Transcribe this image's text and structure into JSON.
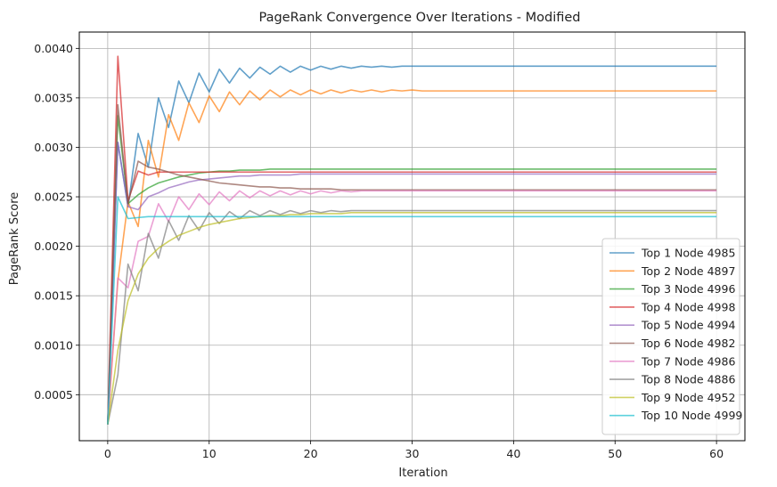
{
  "chart_data": {
    "type": "line",
    "title": "PageRank Convergence Over Iterations - Modified",
    "xlabel": "Iteration",
    "ylabel": "PageRank Score",
    "xlim": [
      -2.8,
      62.8
    ],
    "ylim": [
      3.5e-05,
      0.004165
    ],
    "xticks": [
      0,
      10,
      20,
      30,
      40,
      50,
      60
    ],
    "yticks": [
      0.0005,
      0.001,
      0.0015,
      0.002,
      0.0025,
      0.003,
      0.0035,
      0.004
    ],
    "ytick_labels": [
      "0.0005",
      "0.0010",
      "0.0015",
      "0.0020",
      "0.0025",
      "0.0030",
      "0.0035",
      "0.0040"
    ],
    "grid": true,
    "legend_position": "lower-right",
    "series": [
      {
        "name": "Top 1 Node 4985",
        "color": "#1f77b4",
        "values": [
          0.0002,
          0.00305,
          0.0024,
          0.00314,
          0.0028,
          0.0035,
          0.0032,
          0.00367,
          0.00345,
          0.00375,
          0.00356,
          0.00379,
          0.00365,
          0.0038,
          0.0037,
          0.00381,
          0.00374,
          0.00382,
          0.00376,
          0.00382,
          0.00378,
          0.00382,
          0.00379,
          0.00382,
          0.0038,
          0.00382,
          0.00381,
          0.00382,
          0.00381,
          0.00382
        ]
      },
      {
        "name": "Top 2 Node 4897",
        "color": "#ff7f0e",
        "values": [
          0.0002,
          0.00165,
          0.00245,
          0.0022,
          0.00307,
          0.0027,
          0.00333,
          0.00307,
          0.00345,
          0.00325,
          0.00352,
          0.00336,
          0.00356,
          0.00343,
          0.00357,
          0.00348,
          0.00358,
          0.00351,
          0.00358,
          0.00353,
          0.00358,
          0.00354,
          0.00358,
          0.00355,
          0.00358,
          0.00356,
          0.00358,
          0.00356,
          0.00358,
          0.00357,
          0.00358,
          0.00357
        ]
      },
      {
        "name": "Top 3 Node 4996",
        "color": "#2ca02c",
        "values": [
          0.0002,
          0.00332,
          0.00243,
          0.00252,
          0.00259,
          0.00264,
          0.00267,
          0.0027,
          0.00272,
          0.00274,
          0.00275,
          0.00276,
          0.00276,
          0.00277,
          0.00277,
          0.00277,
          0.00278,
          0.00278
        ]
      },
      {
        "name": "Top 4 Node 4998",
        "color": "#d62728",
        "values": [
          0.0002,
          0.00392,
          0.00246,
          0.00276,
          0.00272,
          0.00275,
          0.00275
        ]
      },
      {
        "name": "Top 5 Node 4994",
        "color": "#9467bd",
        "values": [
          0.0002,
          0.00305,
          0.0024,
          0.00237,
          0.0025,
          0.00254,
          0.00259,
          0.00262,
          0.00265,
          0.00267,
          0.00268,
          0.00269,
          0.0027,
          0.00271,
          0.00271,
          0.00272,
          0.00272,
          0.00272,
          0.00272,
          0.00273,
          0.00273
        ]
      },
      {
        "name": "Top 6 Node 4982",
        "color": "#8c564b",
        "values": [
          0.0002,
          0.00343,
          0.00243,
          0.00286,
          0.0028,
          0.00278,
          0.00275,
          0.00272,
          0.0027,
          0.00268,
          0.00266,
          0.00264,
          0.00263,
          0.00262,
          0.00261,
          0.0026,
          0.0026,
          0.00259,
          0.00259,
          0.00258,
          0.00258,
          0.00258,
          0.00258,
          0.00257,
          0.00257
        ]
      },
      {
        "name": "Top 7 Node 4986",
        "color": "#e377c2",
        "values": [
          0.0002,
          0.00168,
          0.00158,
          0.00205,
          0.0021,
          0.00243,
          0.00225,
          0.0025,
          0.00237,
          0.00253,
          0.00242,
          0.00255,
          0.00246,
          0.00256,
          0.00249,
          0.00256,
          0.00251,
          0.00256,
          0.00252,
          0.00256,
          0.00253,
          0.00256,
          0.00254,
          0.00256,
          0.00255,
          0.00256
        ]
      },
      {
        "name": "Top 8 Node 4886",
        "color": "#7f7f7f",
        "values": [
          0.0002,
          0.0007,
          0.00182,
          0.00155,
          0.00213,
          0.00188,
          0.00226,
          0.00206,
          0.00231,
          0.00216,
          0.00234,
          0.00223,
          0.00235,
          0.00228,
          0.00236,
          0.00231,
          0.00236,
          0.00232,
          0.00236,
          0.00233,
          0.00236,
          0.00234,
          0.00236,
          0.00235,
          0.00236
        ]
      },
      {
        "name": "Top 9 Node 4952",
        "color": "#bcbd22",
        "values": [
          0.0002,
          0.00095,
          0.00145,
          0.00172,
          0.00188,
          0.00198,
          0.00205,
          0.00211,
          0.00215,
          0.00219,
          0.00222,
          0.00224,
          0.00226,
          0.00228,
          0.00229,
          0.0023,
          0.00231,
          0.00231,
          0.00232,
          0.00232,
          0.00233,
          0.00233,
          0.00233,
          0.00233,
          0.00234,
          0.00234
        ]
      },
      {
        "name": "Top 10 Node 4999",
        "color": "#17becf",
        "values": [
          0.0002,
          0.0025,
          0.00228,
          0.00229,
          0.0023,
          0.0023,
          0.0023
        ]
      }
    ]
  }
}
